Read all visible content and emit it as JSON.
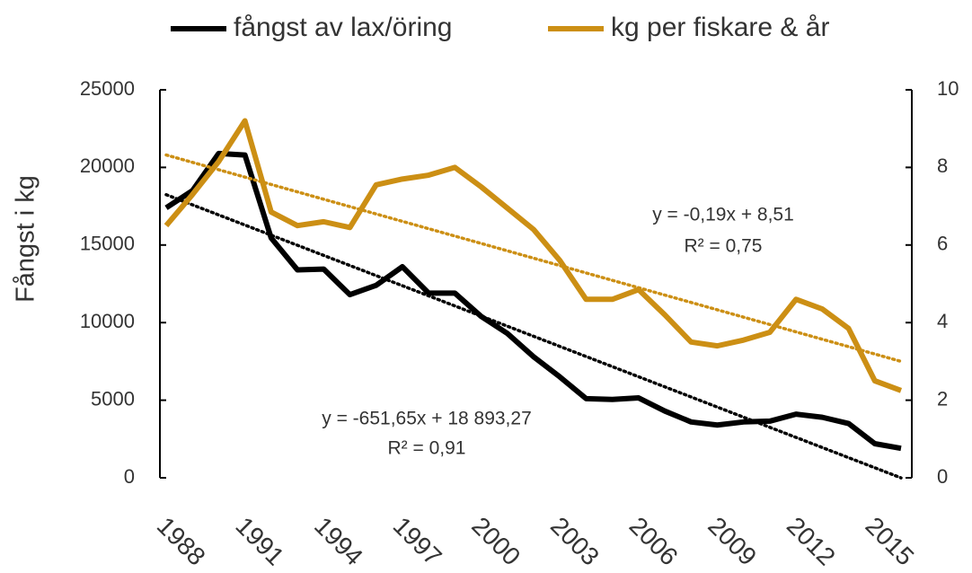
{
  "chart_data": {
    "type": "line",
    "ylabel": "Fångst i kg",
    "x": [
      1987,
      1988,
      1989,
      1990,
      1991,
      1992,
      1993,
      1994,
      1995,
      1996,
      1997,
      1998,
      1999,
      2000,
      2001,
      2002,
      2003,
      2004,
      2005,
      2006,
      2007,
      2008,
      2009,
      2010,
      2011,
      2012,
      2013,
      2014,
      2015
    ],
    "xlim": [
      1987,
      2015
    ],
    "xticks": [
      1988,
      1991,
      1994,
      1997,
      2000,
      2003,
      2006,
      2009,
      2012,
      2015
    ],
    "ylim": [
      0,
      25000
    ],
    "yticks": [
      0,
      5000,
      10000,
      15000,
      20000,
      25000
    ],
    "y2lim": [
      0,
      10
    ],
    "y2ticks": [
      0,
      2,
      4,
      6,
      8,
      10
    ],
    "series": [
      {
        "name": "fångst av lax/öring",
        "color": "#000000",
        "values": [
          17400,
          18500,
          20900,
          20800,
          15450,
          13400,
          13450,
          11800,
          12400,
          13600,
          11900,
          11900,
          10400,
          9300,
          7800,
          6500,
          5100,
          5050,
          5150,
          4300,
          3600,
          3400,
          3600,
          3650,
          4100,
          3900,
          3500,
          2200,
          1900
        ],
        "trend": {
          "slope": -651.65,
          "intercept": 18893.27,
          "equation": "y = -651,65x + 18 893,27",
          "r2": "R² = 0,91"
        }
      },
      {
        "name": "kg per fiskare & år",
        "color": "#cc8f14",
        "axis": "y2",
        "values": [
          6.5,
          7.3,
          8.15,
          9.2,
          6.85,
          6.5,
          6.6,
          6.45,
          7.55,
          7.7,
          7.8,
          8.0,
          7.5,
          6.95,
          6.4,
          5.6,
          4.6,
          4.6,
          4.85,
          4.2,
          3.5,
          3.4,
          3.55,
          3.75,
          4.6,
          4.35,
          3.85,
          2.5,
          2.25
        ],
        "trend": {
          "slope": -0.19,
          "intercept": 8.51,
          "equation": "y = -0,19x + 8,51",
          "r2": "R² = 0,75"
        }
      }
    ]
  }
}
